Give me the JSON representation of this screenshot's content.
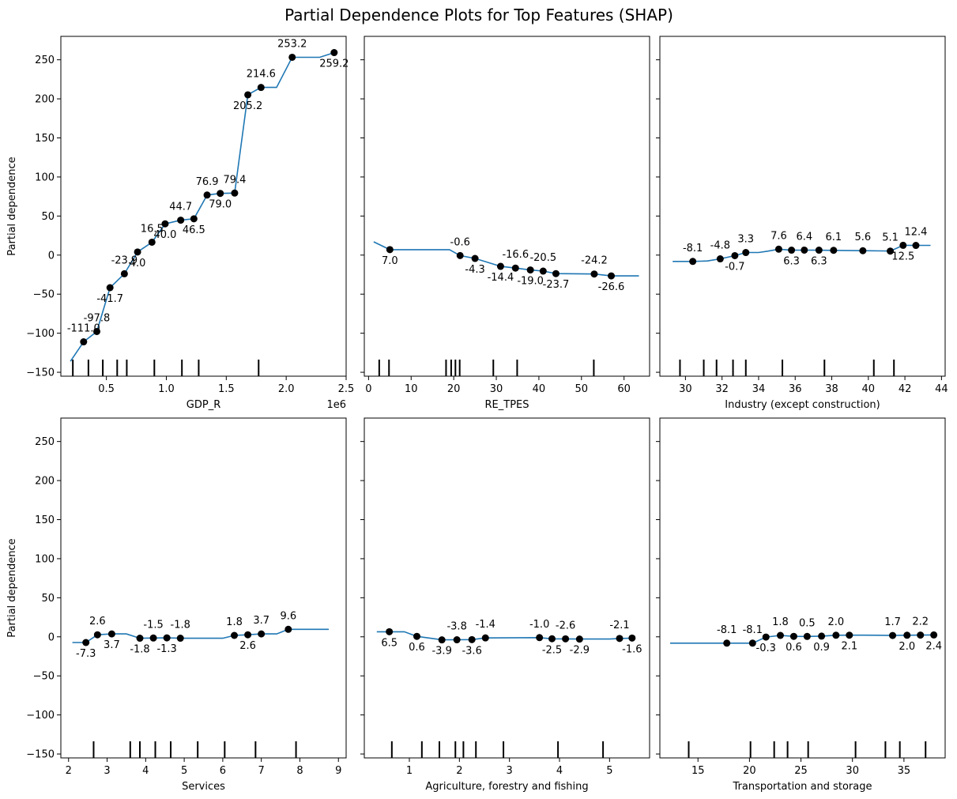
{
  "title": "Partial Dependence Plots for Top Features (SHAP)",
  "ylabel": "Partial dependence",
  "y_ticks": [
    -150,
    -100,
    -50,
    0,
    50,
    100,
    150,
    200,
    250
  ],
  "colors": {
    "line": "#1f77b4",
    "marker": "#000000",
    "axes": "#000000"
  },
  "chart_data": [
    {
      "type": "line",
      "xlabel": "GDP_R",
      "x_offset_label": "1e6",
      "xlim": [
        0.12,
        2.5
      ],
      "ylim": [
        -155,
        280
      ],
      "x_ticks": [
        0.5,
        1.0,
        1.5,
        2.0,
        2.5
      ],
      "x_tick_labels": [
        "0.5",
        "1.0",
        "1.5",
        "2.0",
        "2.5"
      ],
      "show_y_tick_labels": true,
      "show_ylabel": true,
      "curve_x": [
        0.2,
        0.31,
        0.42,
        0.53,
        0.65,
        0.76,
        0.88,
        0.99,
        1.12,
        1.23,
        1.34,
        1.45,
        1.57,
        1.68,
        1.79,
        1.92,
        2.05,
        2.28,
        2.4
      ],
      "curve_y": [
        -136,
        -111,
        -97.8,
        -41.7,
        -23.9,
        4,
        16.5,
        40,
        44.7,
        46.5,
        76.9,
        79,
        79.4,
        205.2,
        214.6,
        214.6,
        253.2,
        253.2,
        259.2
      ],
      "points": [
        {
          "x": 0.31,
          "y": -111.0,
          "label": "-111.0",
          "pos": "above"
        },
        {
          "x": 0.42,
          "y": -97.8,
          "label": "-97.8",
          "pos": "above"
        },
        {
          "x": 0.53,
          "y": -41.7,
          "label": "-41.7",
          "pos": "below"
        },
        {
          "x": 0.65,
          "y": -23.9,
          "label": "-23.9",
          "pos": "above"
        },
        {
          "x": 0.76,
          "y": 4.0,
          "label": "4.0",
          "pos": "below"
        },
        {
          "x": 0.88,
          "y": 16.5,
          "label": "16.5",
          "pos": "above"
        },
        {
          "x": 0.99,
          "y": 40.0,
          "label": "40.0",
          "pos": "below"
        },
        {
          "x": 1.12,
          "y": 44.7,
          "label": "44.7",
          "pos": "above"
        },
        {
          "x": 1.23,
          "y": 46.5,
          "label": "46.5",
          "pos": "below"
        },
        {
          "x": 1.34,
          "y": 76.9,
          "label": "76.9",
          "pos": "above"
        },
        {
          "x": 1.45,
          "y": 79.0,
          "label": "79.0",
          "pos": "below"
        },
        {
          "x": 1.57,
          "y": 79.4,
          "label": "79.4",
          "pos": "above"
        },
        {
          "x": 1.68,
          "y": 205.2,
          "label": "205.2",
          "pos": "below"
        },
        {
          "x": 1.79,
          "y": 214.6,
          "label": "214.6",
          "pos": "above"
        },
        {
          "x": 2.05,
          "y": 253.2,
          "label": "253.2",
          "pos": "above"
        },
        {
          "x": 2.4,
          "y": 259.2,
          "label": "259.2",
          "pos": "below"
        }
      ],
      "rug": [
        0.22,
        0.35,
        0.47,
        0.59,
        0.67,
        0.9,
        1.13,
        1.27,
        1.77
      ]
    },
    {
      "type": "line",
      "xlabel": "RE_TPES",
      "xlim": [
        -1,
        66
      ],
      "ylim": [
        -155,
        280
      ],
      "x_ticks": [
        0,
        10,
        20,
        30,
        40,
        50,
        60
      ],
      "x_tick_labels": [
        "0",
        "10",
        "20",
        "30",
        "40",
        "50",
        "60"
      ],
      "show_y_tick_labels": false,
      "show_ylabel": false,
      "curve_x": [
        1.2,
        5,
        19,
        21.5,
        25,
        31,
        34.5,
        38,
        41,
        44,
        53,
        57,
        63.5
      ],
      "curve_y": [
        17,
        7,
        7,
        -0.6,
        -4.3,
        -14.4,
        -16.6,
        -19,
        -20.5,
        -23.7,
        -24.2,
        -26.6,
        -26.6
      ],
      "points": [
        {
          "x": 5.0,
          "y": 7.0,
          "label": "7.0",
          "pos": "below"
        },
        {
          "x": 21.5,
          "y": -0.6,
          "label": "-0.6",
          "pos": "above"
        },
        {
          "x": 25.0,
          "y": -4.3,
          "label": "-4.3",
          "pos": "below"
        },
        {
          "x": 31.0,
          "y": -14.4,
          "label": "-14.4",
          "pos": "below"
        },
        {
          "x": 34.5,
          "y": -16.6,
          "label": "-16.6",
          "pos": "above"
        },
        {
          "x": 38.0,
          "y": -19.0,
          "label": "-19.0",
          "pos": "below"
        },
        {
          "x": 41.0,
          "y": -20.5,
          "label": "-20.5",
          "pos": "above"
        },
        {
          "x": 44.0,
          "y": -23.7,
          "label": "-23.7",
          "pos": "below"
        },
        {
          "x": 53.0,
          "y": -24.2,
          "label": "-24.2",
          "pos": "above"
        },
        {
          "x": 57.0,
          "y": -26.6,
          "label": "-26.6",
          "pos": "below"
        }
      ],
      "rug": [
        2.5,
        4.8,
        18.2,
        19.4,
        20.4,
        21.4,
        29.3,
        34.9,
        52.9
      ]
    },
    {
      "type": "line",
      "xlabel": "Industry (except construction)",
      "xlim": [
        28.6,
        44.2
      ],
      "ylim": [
        -155,
        280
      ],
      "x_ticks": [
        30,
        32,
        34,
        36,
        38,
        40,
        42,
        44
      ],
      "x_tick_labels": [
        "30",
        "32",
        "34",
        "36",
        "38",
        "40",
        "42",
        "44"
      ],
      "show_y_tick_labels": false,
      "show_ylabel": false,
      "curve_x": [
        29.3,
        30.4,
        31.2,
        31.9,
        32.7,
        33.3,
        34,
        34.5,
        35.1,
        35.8,
        36.5,
        37.3,
        38.1,
        39.7,
        40.8,
        41.2,
        41.9,
        42.6,
        43.4
      ],
      "curve_y": [
        -8.1,
        -8.1,
        -7.5,
        -4.8,
        -0.7,
        3.3,
        3.3,
        5,
        7.6,
        6.3,
        6.4,
        6.3,
        6.1,
        5.6,
        5.3,
        5.1,
        12.5,
        12.4,
        12.4
      ],
      "points": [
        {
          "x": 30.4,
          "y": -8.1,
          "label": "-8.1",
          "pos": "above"
        },
        {
          "x": 31.9,
          "y": -4.8,
          "label": "-4.8",
          "pos": "above"
        },
        {
          "x": 32.7,
          "y": -0.7,
          "label": "-0.7",
          "pos": "below"
        },
        {
          "x": 33.3,
          "y": 3.3,
          "label": "3.3",
          "pos": "above"
        },
        {
          "x": 35.1,
          "y": 7.6,
          "label": "7.6",
          "pos": "above"
        },
        {
          "x": 35.8,
          "y": 6.3,
          "label": "6.3",
          "pos": "below"
        },
        {
          "x": 36.5,
          "y": 6.4,
          "label": "6.4",
          "pos": "above"
        },
        {
          "x": 37.3,
          "y": 6.3,
          "label": "6.3",
          "pos": "below"
        },
        {
          "x": 38.1,
          "y": 6.1,
          "label": "6.1",
          "pos": "above"
        },
        {
          "x": 39.7,
          "y": 5.6,
          "label": "5.6",
          "pos": "above"
        },
        {
          "x": 41.2,
          "y": 5.1,
          "label": "5.1",
          "pos": "above"
        },
        {
          "x": 41.9,
          "y": 12.5,
          "label": "12.5",
          "pos": "below"
        },
        {
          "x": 42.6,
          "y": 12.4,
          "label": "12.4",
          "pos": "above"
        }
      ],
      "rug": [
        29.7,
        31.0,
        31.7,
        32.6,
        33.3,
        35.3,
        37.6,
        40.3,
        41.4
      ]
    },
    {
      "type": "line",
      "xlabel": "Services",
      "xlim": [
        1.8,
        9.2
      ],
      "ylim": [
        -155,
        280
      ],
      "x_ticks": [
        2,
        3,
        4,
        5,
        6,
        7,
        8,
        9
      ],
      "x_tick_labels": [
        "2",
        "3",
        "4",
        "5",
        "6",
        "7",
        "8",
        "9"
      ],
      "show_y_tick_labels": true,
      "show_ylabel": true,
      "curve_x": [
        2.1,
        2.45,
        2.75,
        3.12,
        3.5,
        3.85,
        4.2,
        4.55,
        4.9,
        6.0,
        6.3,
        6.65,
        7.0,
        7.4,
        7.7,
        8.75
      ],
      "curve_y": [
        -7.3,
        -7.3,
        2.6,
        3.7,
        3.7,
        -1.8,
        -1.5,
        -1.3,
        -1.8,
        -1.8,
        1.8,
        2.6,
        3.7,
        3.7,
        9.6,
        9.6
      ],
      "points": [
        {
          "x": 2.45,
          "y": -7.3,
          "label": "-7.3",
          "pos": "below"
        },
        {
          "x": 2.75,
          "y": 2.6,
          "label": "2.6",
          "pos": "above"
        },
        {
          "x": 3.12,
          "y": 3.7,
          "label": "3.7",
          "pos": "below"
        },
        {
          "x": 3.85,
          "y": -1.8,
          "label": "-1.8",
          "pos": "below"
        },
        {
          "x": 4.2,
          "y": -1.5,
          "label": "-1.5",
          "pos": "above"
        },
        {
          "x": 4.55,
          "y": -1.3,
          "label": "-1.3",
          "pos": "below"
        },
        {
          "x": 4.9,
          "y": -1.8,
          "label": "-1.8",
          "pos": "above"
        },
        {
          "x": 6.3,
          "y": 1.8,
          "label": "1.8",
          "pos": "above"
        },
        {
          "x": 6.65,
          "y": 2.6,
          "label": "2.6",
          "pos": "below"
        },
        {
          "x": 7.0,
          "y": 3.7,
          "label": "3.7",
          "pos": "above"
        },
        {
          "x": 7.7,
          "y": 9.6,
          "label": "9.6",
          "pos": "above"
        }
      ],
      "rug": [
        2.65,
        3.6,
        3.85,
        4.25,
        4.65,
        5.35,
        6.05,
        6.85,
        7.9
      ]
    },
    {
      "type": "line",
      "xlabel": "Agriculture, forestry and fishing",
      "xlim": [
        0.1,
        5.8
      ],
      "ylim": [
        -155,
        280
      ],
      "x_ticks": [
        1,
        2,
        3,
        4,
        5
      ],
      "x_tick_labels": [
        "1",
        "2",
        "3",
        "4",
        "5"
      ],
      "show_y_tick_labels": false,
      "show_ylabel": false,
      "curve_x": [
        0.35,
        0.6,
        0.9,
        1.15,
        1.65,
        1.95,
        2.25,
        2.52,
        3.6,
        3.85,
        4.12,
        4.4,
        5.0,
        5.2,
        5.45
      ],
      "curve_y": [
        6.5,
        6.5,
        6.5,
        0.6,
        -3.9,
        -3.8,
        -3.6,
        -1.4,
        -1.0,
        -2.5,
        -2.6,
        -2.9,
        -2.9,
        -2.1,
        -1.6
      ],
      "points": [
        {
          "x": 0.6,
          "y": 6.5,
          "label": "6.5",
          "pos": "below"
        },
        {
          "x": 1.15,
          "y": 0.6,
          "label": "0.6",
          "pos": "below"
        },
        {
          "x": 1.65,
          "y": -3.9,
          "label": "-3.9",
          "pos": "below"
        },
        {
          "x": 1.95,
          "y": -3.8,
          "label": "-3.8",
          "pos": "above"
        },
        {
          "x": 2.25,
          "y": -3.6,
          "label": "-3.6",
          "pos": "below"
        },
        {
          "x": 2.52,
          "y": -1.4,
          "label": "-1.4",
          "pos": "above"
        },
        {
          "x": 3.6,
          "y": -1.0,
          "label": "-1.0",
          "pos": "above"
        },
        {
          "x": 3.85,
          "y": -2.5,
          "label": "-2.5",
          "pos": "below"
        },
        {
          "x": 4.12,
          "y": -2.6,
          "label": "-2.6",
          "pos": "above"
        },
        {
          "x": 4.4,
          "y": -2.9,
          "label": "-2.9",
          "pos": "below"
        },
        {
          "x": 5.2,
          "y": -2.1,
          "label": "-2.1",
          "pos": "above"
        },
        {
          "x": 5.45,
          "y": -1.6,
          "label": "-1.6",
          "pos": "below"
        }
      ],
      "rug": [
        0.65,
        1.25,
        1.6,
        1.92,
        2.08,
        2.33,
        2.88,
        3.97,
        4.87
      ]
    },
    {
      "type": "line",
      "xlabel": "Transportation and storage",
      "xlim": [
        11.3,
        39.0
      ],
      "ylim": [
        -155,
        280
      ],
      "x_ticks": [
        15,
        20,
        25,
        30,
        35
      ],
      "x_tick_labels": [
        "15",
        "20",
        "25",
        "30",
        "35"
      ],
      "show_y_tick_labels": false,
      "show_ylabel": false,
      "curve_x": [
        12.3,
        15.5,
        17.8,
        20.3,
        21.6,
        23.0,
        24.3,
        25.6,
        27.0,
        28.4,
        29.7,
        31.0,
        32.5,
        33.9,
        35.3,
        36.6,
        37.9
      ],
      "curve_y": [
        -8.1,
        -8.1,
        -8.1,
        -8.1,
        -0.3,
        1.8,
        0.6,
        0.5,
        0.9,
        2.0,
        2.1,
        2.1,
        2.0,
        1.7,
        2.0,
        2.2,
        2.4
      ],
      "points": [
        {
          "x": 17.8,
          "y": -8.1,
          "label": "-8.1",
          "pos": "above"
        },
        {
          "x": 20.3,
          "y": -8.1,
          "label": "-8.1",
          "pos": "above"
        },
        {
          "x": 21.6,
          "y": -0.3,
          "label": "-0.3",
          "pos": "below"
        },
        {
          "x": 23.0,
          "y": 1.8,
          "label": "1.8",
          "pos": "above"
        },
        {
          "x": 24.3,
          "y": 0.6,
          "label": "0.6",
          "pos": "below"
        },
        {
          "x": 25.6,
          "y": 0.5,
          "label": "0.5",
          "pos": "above"
        },
        {
          "x": 27.0,
          "y": 0.9,
          "label": "0.9",
          "pos": "below"
        },
        {
          "x": 28.4,
          "y": 2.0,
          "label": "2.0",
          "pos": "above"
        },
        {
          "x": 29.7,
          "y": 2.1,
          "label": "2.1",
          "pos": "below"
        },
        {
          "x": 33.9,
          "y": 1.7,
          "label": "1.7",
          "pos": "above"
        },
        {
          "x": 35.3,
          "y": 2.0,
          "label": "2.0",
          "pos": "below"
        },
        {
          "x": 36.6,
          "y": 2.2,
          "label": "2.2",
          "pos": "above"
        },
        {
          "x": 37.9,
          "y": 2.4,
          "label": "2.4",
          "pos": "below"
        }
      ],
      "rug": [
        14.1,
        20.1,
        22.4,
        23.7,
        25.7,
        30.3,
        33.2,
        34.6,
        37.1
      ]
    }
  ]
}
